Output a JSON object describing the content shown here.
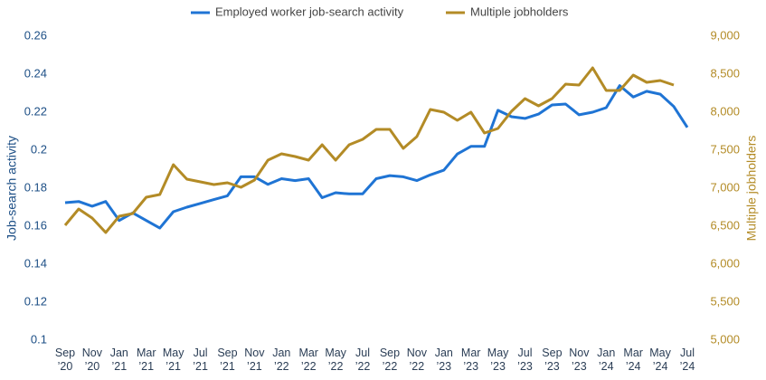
{
  "chart_data": {
    "type": "line",
    "categories": [
      "Sep\n’20",
      null,
      "Nov\n’20",
      null,
      "Jan\n’21",
      null,
      "Mar\n’21",
      null,
      "May\n’21",
      null,
      "Jul\n’21",
      null,
      "Sep\n’21",
      null,
      "Nov\n’21",
      null,
      "Jan\n’22",
      null,
      "Mar\n’22",
      null,
      "May\n’22",
      null,
      "Jul\n’22",
      null,
      "Sep\n’22",
      null,
      "Nov\n’22",
      null,
      "Jan\n’23",
      null,
      "Mar\n’23",
      null,
      "May\n’23",
      null,
      "Jul\n’23",
      null,
      "Sep\n’23",
      null,
      "Nov\n’23",
      null,
      "Jan\n’24",
      null,
      "Mar\n’24",
      null,
      "May\n’24",
      null,
      "Jul\n’24"
    ],
    "series": [
      {
        "name": "Employed worker job-search activity",
        "color": "#1f74d4",
        "axis": "y",
        "values": [
          0.1724,
          0.173,
          0.1705,
          0.173,
          0.163,
          0.167,
          0.163,
          0.159,
          0.1676,
          0.17,
          0.172,
          0.174,
          0.176,
          0.186,
          0.186,
          0.182,
          0.185,
          0.184,
          0.185,
          0.175,
          0.1776,
          0.177,
          0.177,
          0.185,
          0.1866,
          0.186,
          0.184,
          0.187,
          0.1895,
          0.198,
          0.202,
          0.202,
          0.221,
          0.2176,
          0.2167,
          0.219,
          0.2238,
          0.2243,
          0.2186,
          0.22,
          0.2224,
          0.234,
          0.228,
          0.231,
          0.2295,
          0.223,
          0.212
        ]
      },
      {
        "name": "Multiple jobholders",
        "color": "#b38b26",
        "axis": "y2",
        "values": [
          6512,
          6726,
          6607,
          6417,
          6631,
          6667,
          6881,
          6917,
          7310,
          7119,
          7083,
          7048,
          7071,
          7012,
          7107,
          7369,
          7452,
          7417,
          7369,
          7571,
          7369,
          7571,
          7643,
          7774,
          7774,
          7524,
          7679,
          8036,
          8000,
          7893,
          8000,
          7726,
          7786,
          8012,
          8179,
          8083,
          8179,
          8369,
          8357,
          8583,
          8286,
          8286,
          8488,
          8393,
          8417,
          8357,
          null
        ]
      }
    ],
    "y_label": "Job-search activity",
    "y2_label": "Multiple jobholders",
    "ylim": [
      0.1,
      0.26
    ],
    "yticks": [
      0.1,
      0.12,
      0.14,
      0.16,
      0.18,
      0.2,
      0.22,
      0.24,
      0.26
    ],
    "y2lim": [
      5000,
      9000
    ],
    "y2ticks": [
      {
        "value": 5000,
        "label": "5,000"
      },
      {
        "value": 5500,
        "label": "5,500"
      },
      {
        "value": 6000,
        "label": "6,000"
      },
      {
        "value": 6500,
        "label": "6,500"
      },
      {
        "value": 7000,
        "label": "7,000"
      },
      {
        "value": 7500,
        "label": "7,500"
      },
      {
        "value": 8000,
        "label": "8,000"
      },
      {
        "value": 8500,
        "label": "8,500"
      },
      {
        "value": 9000,
        "label": "9,000"
      }
    ],
    "y_color": "#1d4f86",
    "y2_color": "#b38b26",
    "grid": false,
    "legend": "top"
  }
}
